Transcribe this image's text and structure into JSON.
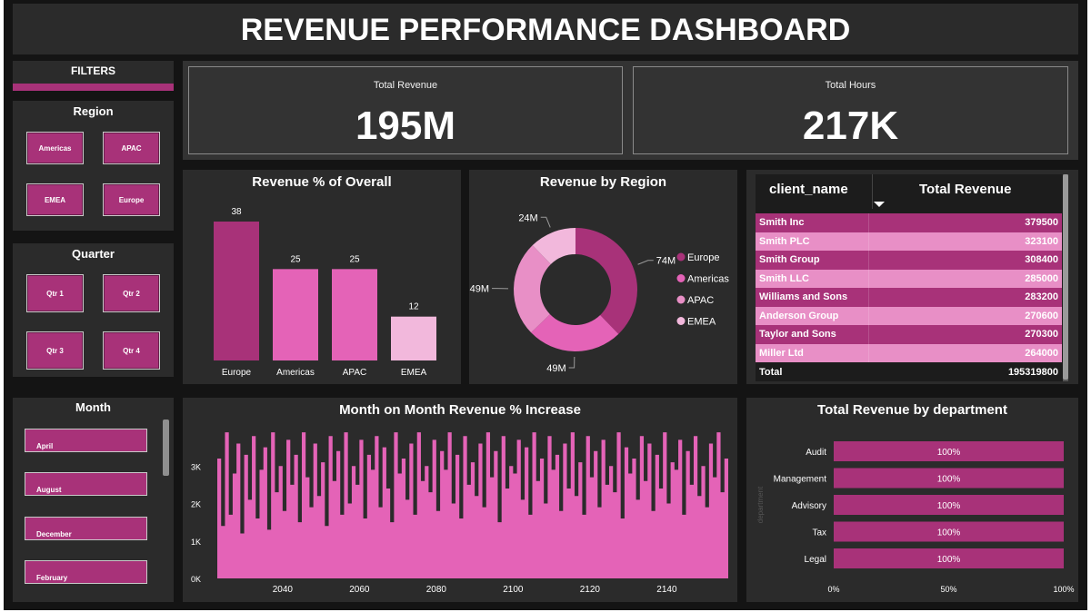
{
  "header": {
    "title": "REVENUE PERFORMANCE DASHBOARD"
  },
  "filters": {
    "title": "FILTERS",
    "region": {
      "title": "Region",
      "options": [
        "Americas",
        "APAC",
        "EMEA",
        "Europe"
      ]
    },
    "quarter": {
      "title": "Quarter",
      "options": [
        "Qtr 1",
        "Qtr 2",
        "Qtr 3",
        "Qtr 4"
      ]
    },
    "month": {
      "title": "Month",
      "options": [
        "April",
        "August",
        "December",
        "February"
      ]
    }
  },
  "kpis": {
    "total_revenue": {
      "label": "Total Revenue",
      "value": "195M"
    },
    "total_hours": {
      "label": "Total Hours",
      "value": "217K"
    }
  },
  "revenue_pct": {
    "title": "Revenue % of Overall",
    "chart_data": {
      "type": "bar",
      "categories": [
        "Europe",
        "Americas",
        "APAC",
        "EMEA"
      ],
      "values": [
        38,
        25,
        25,
        12
      ],
      "ylim": [
        0,
        38
      ]
    }
  },
  "revenue_region": {
    "title": "Revenue by Region",
    "chart_data": {
      "type": "pie",
      "labels": [
        "Europe",
        "Americas",
        "APAC",
        "EMEA"
      ],
      "values": [
        74,
        49,
        49,
        24
      ],
      "data_labels": [
        "74M",
        "49M",
        "49M",
        "24M"
      ],
      "colors": [
        "#a83279",
        "#e463b7",
        "#e88fc6",
        "#f2b8dc"
      ],
      "legend_position": "right"
    }
  },
  "client_table": {
    "columns": [
      "client_name",
      "Total Revenue"
    ],
    "rows": [
      [
        "Smith Inc",
        "379500"
      ],
      [
        "Smith PLC",
        "323100"
      ],
      [
        "Smith Group",
        "308400"
      ],
      [
        "Smith LLC",
        "285000"
      ],
      [
        "Williams and Sons",
        "283200"
      ],
      [
        "Anderson Group",
        "270600"
      ],
      [
        "Taylor and Sons",
        "270300"
      ],
      [
        "Miller Ltd",
        "264000"
      ]
    ],
    "total_label": "Total",
    "total_value": "195319800",
    "sort_icon": "sort-descending-icon"
  },
  "mom_chart": {
    "title": "Month on Month Revenue % Increase",
    "chart_data": {
      "type": "area",
      "x_range": [
        2023,
        2156
      ],
      "x_ticks": [
        "2040",
        "2060",
        "2080",
        "2100",
        "2120",
        "2140"
      ],
      "y_ticks": [
        "0K",
        "1K",
        "2K",
        "3K"
      ],
      "ylim": [
        0,
        4000
      ],
      "values": [
        3200,
        1400,
        3900,
        1700,
        2800,
        3600,
        1200,
        3300,
        2100,
        3800,
        1600,
        2900,
        3500,
        1300,
        3900,
        2300,
        3000,
        1800,
        3700,
        2500,
        3300,
        1500,
        3900,
        2700,
        1900,
        3600,
        2200,
        3100,
        1400,
        3800,
        2600,
        3400,
        1700,
        3900,
        2000,
        3000,
        2500,
        3700,
        1600,
        3300,
        2900,
        3800,
        1900,
        3500,
        2400,
        1500,
        3900,
        2800,
        3200,
        2100,
        3600,
        1700,
        3900,
        2600,
        3000,
        2300,
        3700,
        1800,
        3400,
        2900,
        3900,
        2000,
        3300,
        1600,
        3800,
        2500,
        3100,
        2200,
        3600,
        1900,
        3900,
        2700,
        3400,
        1500,
        3800,
        2400,
        3000,
        2800,
        3700,
        2100,
        3500,
        1700,
        3900,
        2600,
        3200,
        2000,
        3800,
        2900,
        3300,
        1800,
        3600,
        2400,
        3900,
        2200,
        3100,
        1700,
        3800,
        2700,
        3400,
        1900,
        3700,
        2500,
        3000,
        2300,
        3900,
        1600,
        3500,
        2800,
        3200,
        2100,
        3800,
        2600,
        3600,
        1800,
        3300,
        2400,
        3900,
        2000,
        3100,
        2900,
        3700,
        1700,
        3400,
        2500,
        3800,
        2200,
        3000,
        1900,
        3600,
        2700,
        3900,
        2300,
        3200,
        2000
      ]
    }
  },
  "dept_chart": {
    "title": "Total Revenue by department",
    "axis_label": "department",
    "chart_data": {
      "type": "bar",
      "orientation": "horizontal",
      "categories": [
        "Audit",
        "Management",
        "Advisory",
        "Tax",
        "Legal"
      ],
      "values": [
        100,
        100,
        100,
        100,
        100
      ],
      "data_labels": [
        "100%",
        "100%",
        "100%",
        "100%",
        "100%"
      ],
      "x_ticks": [
        "0%",
        "50%",
        "100%"
      ],
      "xlim": [
        0,
        100
      ]
    }
  },
  "colors": {
    "dark_magenta": "#a83279",
    "pink": "#e463b7",
    "light_pink": "#f2b8dc",
    "panel": "#2b2b2b",
    "background": "#141414"
  }
}
